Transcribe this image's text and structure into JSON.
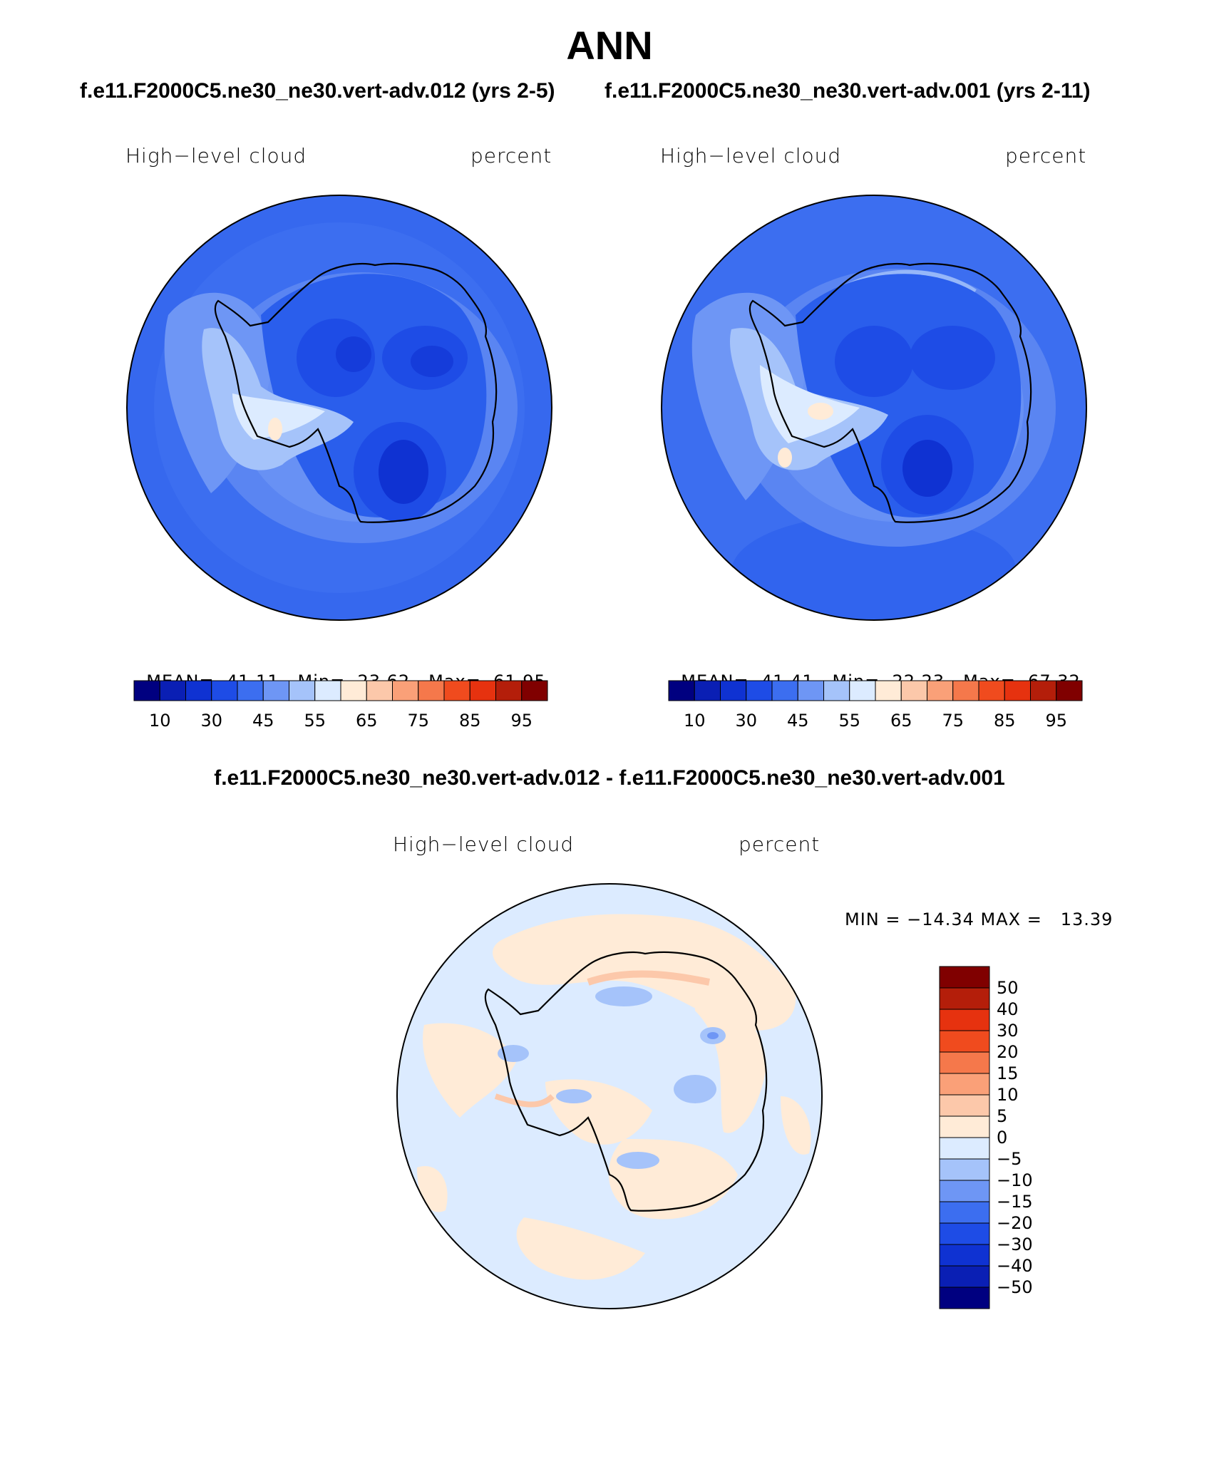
{
  "title": "ANN",
  "panels": [
    {
      "case_title": "f.e11.F2000C5.ne30_ne30.vert-adv.012 (yrs 2-5)",
      "variable": "High−level cloud",
      "units": "percent",
      "mean_label": "MEAN=",
      "mean": "41.11",
      "min_label": "Min=",
      "min": "23.62",
      "max_label": "Max=",
      "max": "61.95"
    },
    {
      "case_title": "f.e11.F2000C5.ne30_ne30.vert-adv.001 (yrs 2-11)",
      "variable": "High−level cloud",
      "units": "percent",
      "mean_label": "MEAN=",
      "mean": "41.41",
      "min_label": "Min=",
      "min": "22.23",
      "max_label": "Max=",
      "max": "67.32"
    }
  ],
  "diff": {
    "title": "f.e11.F2000C5.ne30_ne30.vert-adv.012 - f.e11.F2000C5.ne30_ne30.vert-adv.001",
    "variable": "High−level cloud",
    "units": "percent",
    "minmax": "MIN = −14.34 MAX =   13.39"
  },
  "colorbar_abs": {
    "colors": [
      "#000080",
      "#0a1fb4",
      "#0f32d2",
      "#1e4ce6",
      "#3c6ef0",
      "#6e96f5",
      "#a5c3fa",
      "#dcebff",
      "#ffebd7",
      "#fcc8aa",
      "#faa078",
      "#f5784b",
      "#f04b1e",
      "#e6320f",
      "#b41e0a",
      "#800000"
    ],
    "tick_labels": [
      "10",
      "30",
      "45",
      "55",
      "65",
      "75",
      "85",
      "95"
    ]
  },
  "colorbar_diff": {
    "colors": [
      "#800000",
      "#b41e0a",
      "#e6320f",
      "#f04b1e",
      "#f5784b",
      "#faa078",
      "#fcc8aa",
      "#ffebd7",
      "#dcebff",
      "#a5c3fa",
      "#6e96f5",
      "#3c6ef0",
      "#1e4ce6",
      "#0f32d2",
      "#0a1fb4",
      "#000080"
    ],
    "tick_labels": [
      "50",
      "40",
      "30",
      "20",
      "15",
      "10",
      "5",
      "0",
      "−5",
      "−10",
      "−15",
      "−20",
      "−30",
      "−40",
      "−50"
    ]
  }
}
